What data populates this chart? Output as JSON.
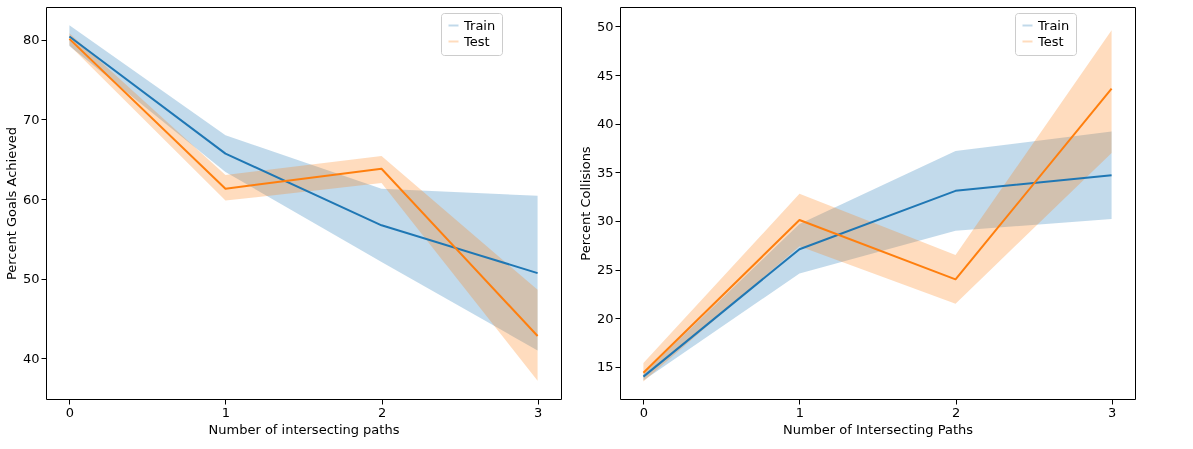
{
  "chart_data": [
    {
      "type": "line",
      "xlabel": "Number of intersecting paths",
      "ylabel": "Percent Goals Achieved",
      "x": [
        0,
        1,
        2,
        3
      ],
      "xlim": [
        -0.15,
        3.15
      ],
      "xticks": [
        0,
        1,
        2,
        3
      ],
      "ylim": [
        34.9,
        84.1
      ],
      "yticks": [
        40,
        50,
        60,
        70,
        80
      ],
      "grid": false,
      "legend": "top right",
      "series": [
        {
          "name": "Train",
          "color": "#1f77b4",
          "values": [
            80.4,
            65.7,
            56.7,
            50.7
          ],
          "lower": [
            79.2,
            63.4,
            52.1,
            41.0
          ],
          "upper": [
            81.8,
            68.0,
            61.3,
            60.4
          ]
        },
        {
          "name": "Test",
          "color": "#ff7f0e",
          "values": [
            80.1,
            61.3,
            63.8,
            42.8
          ],
          "lower": [
            79.3,
            59.8,
            62.0,
            37.2
          ],
          "upper": [
            80.8,
            63.0,
            65.4,
            48.6
          ]
        }
      ]
    },
    {
      "type": "line",
      "xlabel": "Number of Intersecting Paths",
      "ylabel": "Percent Collisions",
      "x": [
        0,
        1,
        2,
        3
      ],
      "xlim": [
        -0.15,
        3.15
      ],
      "xticks": [
        0,
        1,
        2,
        3
      ],
      "ylim": [
        11.7,
        52
      ],
      "yticks": [
        15,
        20,
        25,
        30,
        35,
        40,
        45,
        50
      ],
      "grid": false,
      "legend": "top right",
      "series": [
        {
          "name": "Train",
          "color": "#1f77b4",
          "values": [
            14.0,
            27.1,
            33.1,
            34.7
          ],
          "lower": [
            13.6,
            24.6,
            29.0,
            30.2
          ],
          "upper": [
            14.3,
            29.7,
            37.2,
            39.2
          ]
        },
        {
          "name": "Test",
          "color": "#ff7f0e",
          "values": [
            14.4,
            30.1,
            24.0,
            43.6
          ],
          "lower": [
            13.5,
            27.4,
            21.5,
            37.0
          ],
          "upper": [
            15.4,
            32.8,
            26.5,
            49.6
          ]
        }
      ]
    }
  ]
}
